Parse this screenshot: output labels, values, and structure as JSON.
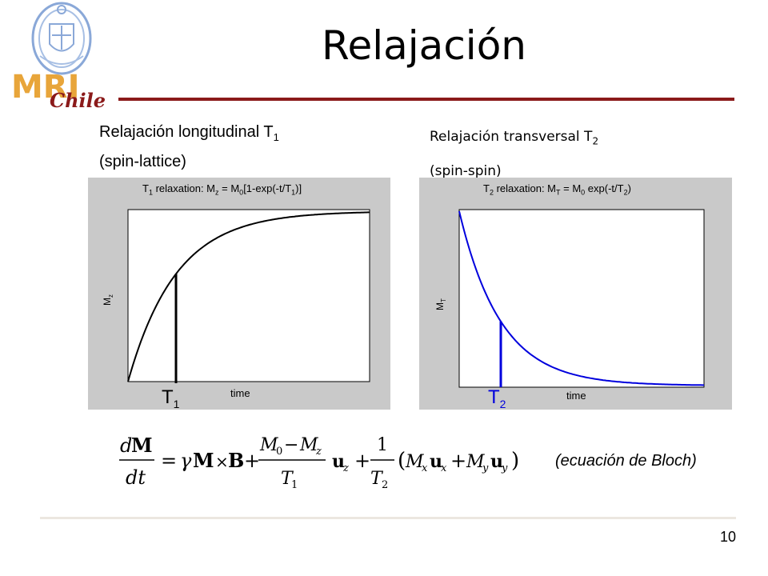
{
  "logo": {
    "text_main": "MRI",
    "text_sub": "Chile"
  },
  "slide": {
    "title": "Relajación",
    "page_number": "10"
  },
  "left": {
    "heading_line1": "Relajación longitudinal T",
    "heading_sub": "1",
    "heading_line2": "(spin-lattice)",
    "plot_title": "T1 relaxation: Mz = M0[1-exp(-t/T1)]",
    "ylabel": "Mz",
    "xlabel": "time",
    "marker_label": "T1",
    "curve_color": "#000000"
  },
  "right": {
    "heading_line1": "Relajación transversal T",
    "heading_sub": "2",
    "heading_line2": "(spin-spin)",
    "plot_title": "T2 relaxation: MT = M0 exp(-t/T2)",
    "ylabel": "MT",
    "xlabel": "time",
    "marker_label": "T2",
    "curve_color": "#0000dd"
  },
  "equation": {
    "latex": "dM/dt = γ M × B + (M0 − Mz)/T1 uz + 1/T2 (Mx ux + My uy)",
    "caption": "(ecuación de Bloch)"
  },
  "colors": {
    "title_rule": "#8b1a1a",
    "plot_bg": "#c9c9c9",
    "logo_gold": "#e8a53a",
    "logo_blue": "#8aa8d8"
  }
}
